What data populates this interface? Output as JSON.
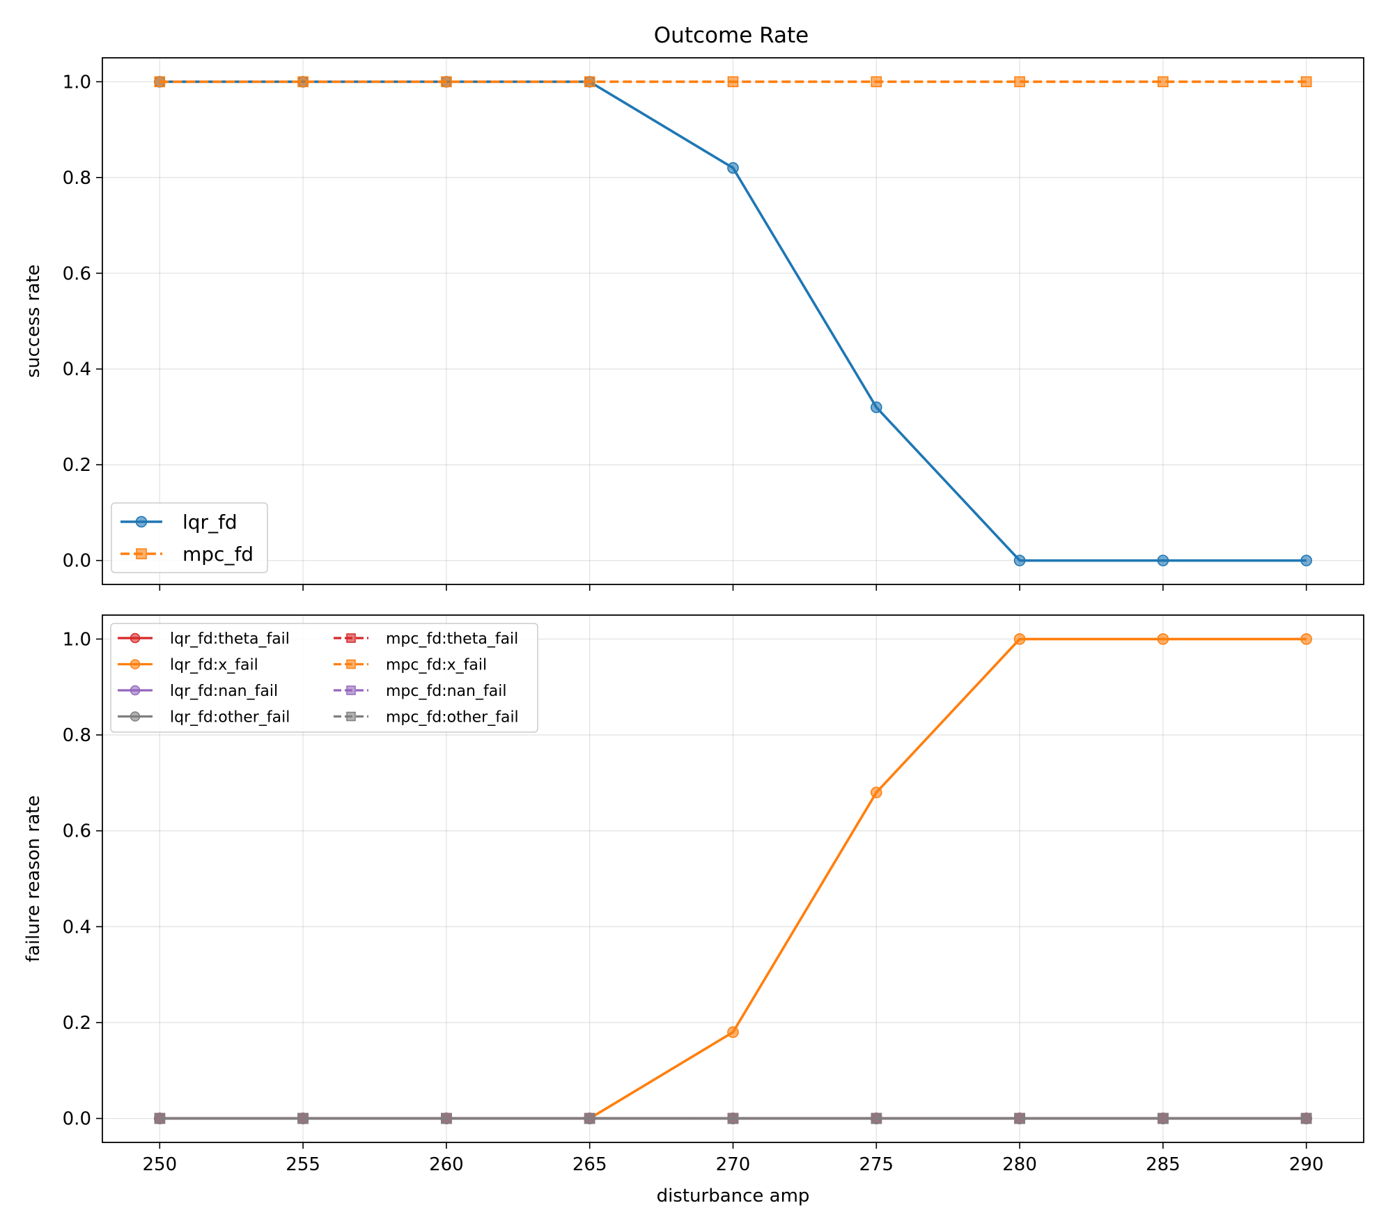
{
  "figure": {
    "title": "Outcome Rate"
  },
  "chart_data": [
    {
      "type": "line",
      "title": "Outcome Rate",
      "xlabel": "",
      "ylabel": "success rate",
      "x": [
        250,
        255,
        260,
        265,
        270,
        275,
        280,
        285,
        290
      ],
      "x_ticks": [
        "250",
        "255",
        "260",
        "265",
        "270",
        "275",
        "280",
        "285",
        "290"
      ],
      "y_ticks": [
        "0.0",
        "0.2",
        "0.4",
        "0.6",
        "0.8",
        "1.0"
      ],
      "xlim": [
        248,
        292
      ],
      "ylim": [
        -0.05,
        1.05
      ],
      "grid": true,
      "legend_position": "lower-left",
      "legend_columns": 1,
      "series": [
        {
          "name": "lqr_fd",
          "color": "#1f77b4",
          "marker": "circle",
          "dashed": false,
          "values": [
            1.0,
            1.0,
            1.0,
            1.0,
            0.82,
            0.32,
            0.0,
            0.0,
            0.0
          ]
        },
        {
          "name": "mpc_fd",
          "color": "#ff7f0e",
          "marker": "square",
          "dashed": true,
          "values": [
            1.0,
            1.0,
            1.0,
            1.0,
            1.0,
            1.0,
            1.0,
            1.0,
            1.0
          ]
        }
      ]
    },
    {
      "type": "line",
      "title": "",
      "xlabel": "disturbance amp",
      "ylabel": "failure reason rate",
      "x": [
        250,
        255,
        260,
        265,
        270,
        275,
        280,
        285,
        290
      ],
      "x_ticks": [
        "250",
        "255",
        "260",
        "265",
        "270",
        "275",
        "280",
        "285",
        "290"
      ],
      "y_ticks": [
        "0.0",
        "0.2",
        "0.4",
        "0.6",
        "0.8",
        "1.0"
      ],
      "xlim": [
        248,
        292
      ],
      "ylim": [
        -0.05,
        1.05
      ],
      "grid": true,
      "legend_position": "upper-left",
      "legend_columns": 2,
      "series": [
        {
          "name": "lqr_fd:theta_fail",
          "color": "#d62728",
          "marker": "circle",
          "dashed": false,
          "values": [
            0,
            0,
            0,
            0,
            0,
            0,
            0,
            0,
            0
          ]
        },
        {
          "name": "lqr_fd:x_fail",
          "color": "#ff7f0e",
          "marker": "circle",
          "dashed": false,
          "values": [
            0,
            0,
            0,
            0,
            0.18,
            0.68,
            1.0,
            1.0,
            1.0
          ]
        },
        {
          "name": "lqr_fd:nan_fail",
          "color": "#9467bd",
          "marker": "circle",
          "dashed": false,
          "values": [
            0,
            0,
            0,
            0,
            0,
            0,
            0,
            0,
            0
          ]
        },
        {
          "name": "lqr_fd:other_fail",
          "color": "#7f7f7f",
          "marker": "circle",
          "dashed": false,
          "values": [
            0,
            0,
            0,
            0,
            0,
            0,
            0,
            0,
            0
          ]
        },
        {
          "name": "mpc_fd:theta_fail",
          "color": "#d62728",
          "marker": "square",
          "dashed": true,
          "values": [
            0,
            0,
            0,
            0,
            0,
            0,
            0,
            0,
            0
          ]
        },
        {
          "name": "mpc_fd:x_fail",
          "color": "#ff7f0e",
          "marker": "square",
          "dashed": true,
          "values": [
            0,
            0,
            0,
            0,
            0,
            0,
            0,
            0,
            0
          ]
        },
        {
          "name": "mpc_fd:nan_fail",
          "color": "#9467bd",
          "marker": "square",
          "dashed": true,
          "values": [
            0,
            0,
            0,
            0,
            0,
            0,
            0,
            0,
            0
          ]
        },
        {
          "name": "mpc_fd:other_fail",
          "color": "#7f7f7f",
          "marker": "square",
          "dashed": true,
          "values": [
            0,
            0,
            0,
            0,
            0,
            0,
            0,
            0,
            0
          ]
        }
      ]
    }
  ]
}
